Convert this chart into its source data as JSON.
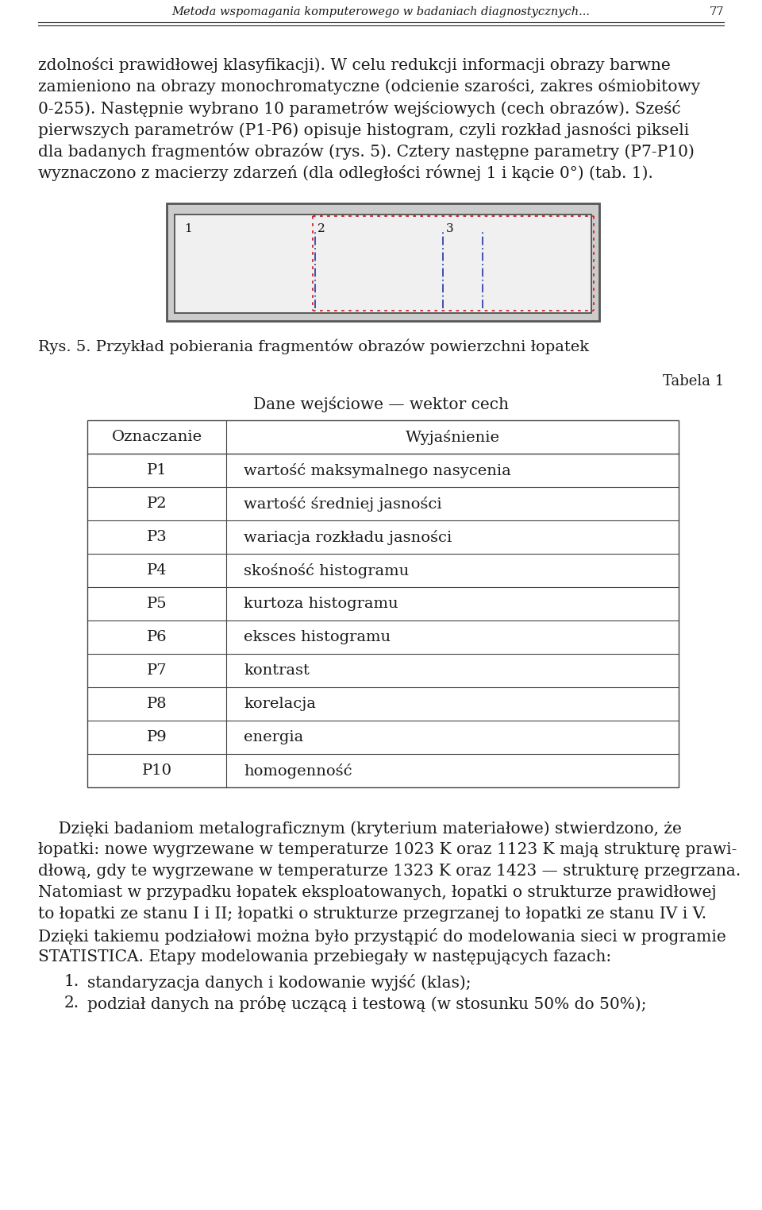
{
  "page_title": "Metoda wspomagania komputerowego w badaniach diagnostycznych...",
  "page_number": "77",
  "background_color": "#ffffff",
  "text_color": "#1a1a1a",
  "fig_caption": "Rys. 5. Przykład pobierania fragmentów obrazów powierzchni łopatek",
  "table_title_small": "Tabela 1",
  "table_subtitle": "Dane wejściowe — wektor cech",
  "table_col1_header": "Oznaczanie",
  "table_col2_header": "Wyjaśnienie",
  "table_rows": [
    [
      "P1",
      "wartość maksymalnego nasycenia"
    ],
    [
      "P2",
      "wartość średniej jasności"
    ],
    [
      "P3",
      "wariacja rozkładu jasności"
    ],
    [
      "P4",
      "skośność histogramu"
    ],
    [
      "P5",
      "kurtoza histogramu"
    ],
    [
      "P6",
      "eksces histogramu"
    ],
    [
      "P7",
      "kontrast"
    ],
    [
      "P8",
      "korelacja"
    ],
    [
      "P9",
      "energia"
    ],
    [
      "P10",
      "homogenność"
    ]
  ],
  "para1_lines": [
    "zdolności prawidłowej klasyfikacji). W celu redukcji informacji obrazy barwne",
    "zamieniono na obrazy monochromatyczne (odcienie szarości, zakres ośmiobitowy",
    "0-255). Następnie wybrano 10 parametrów wejściowych (cech obrazów). Sześć",
    "pierwszych parametrów (P1-P6) opisuje histogram, czyli rozkład jasności pikseli",
    "dla badanych fragmentów obrazów (rys. 5). Cztery następne parametry (P7-P10)",
    "wyznaczono z macierzy zdarzeń (dla odległości równej 1 i kącie 0°) (tab. 1)."
  ],
  "para2_lines": [
    "    Dzięki badaniom metalograficznym (kryterium materiałowe) stwierdzono, że",
    "łopatki: nowe wygrzewane w temperaturze 1023 K oraz 1123 K mają strukturę prawi-",
    "dłową, gdy te wygrzewane w temperaturze 1323 K oraz 1423 — strukturę przegrzana.",
    "Natomiast w przypadku łopatek eksploatowanych, łopatki o strukturze prawidłowej",
    "to łopatki ze stanu I i II; łopatki o strukturze przegrzanej to łopatki ze stanu IV i V.",
    "Dzięki takiemu podziałowi można było przystąpić do modelowania sieci w programie",
    "STATISTICA. Etapy modelowania przebiegały w następujących fazach:"
  ],
  "list_items": [
    "standaryzacja danych i kodowanie wyjść (klas);",
    "podział danych na próbę uczącą i testową (w stosunku 50% do 50%);"
  ],
  "header_fontsize": 10.5,
  "body_fontsize": 14.5,
  "caption_fontsize": 14,
  "table_fontsize": 14,
  "tabela_label_fontsize": 13
}
